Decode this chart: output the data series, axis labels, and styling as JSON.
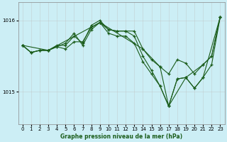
{
  "title": "Graphe pression niveau de la mer (hPa)",
  "xlim": [
    -0.5,
    23.5
  ],
  "ylim": [
    1014.55,
    1016.25
  ],
  "yticks": [
    1015,
    1016
  ],
  "xticks": [
    0,
    1,
    2,
    3,
    4,
    5,
    6,
    7,
    8,
    9,
    10,
    11,
    12,
    13,
    14,
    15,
    16,
    17,
    18,
    19,
    20,
    21,
    22,
    23
  ],
  "bg_color": "#cceef5",
  "grid_color": "#bbbbbb",
  "line_color": "#1a5c1a",
  "lines": [
    {
      "x": [
        0,
        1,
        2,
        3,
        4,
        5,
        6,
        7,
        8,
        9,
        10,
        11,
        12,
        13,
        14,
        15,
        16,
        17,
        18,
        19,
        20,
        21,
        22,
        23
      ],
      "y": [
        1015.65,
        1015.55,
        1015.58,
        1015.58,
        1015.63,
        1015.6,
        1015.7,
        1015.7,
        1015.9,
        1015.97,
        1015.87,
        1015.85,
        1015.85,
        1015.85,
        1015.6,
        1015.45,
        1015.35,
        1015.25,
        1015.45,
        1015.4,
        1015.25,
        1015.38,
        1015.5,
        1016.05
      ]
    },
    {
      "x": [
        0,
        1,
        2,
        3,
        4,
        5,
        6,
        7,
        8,
        9,
        10,
        11,
        12,
        13,
        14,
        15,
        16,
        17,
        18,
        19,
        20,
        21,
        22,
        23
      ],
      "y": [
        1015.65,
        1015.55,
        1015.58,
        1015.58,
        1015.65,
        1015.65,
        1015.78,
        1015.68,
        1015.93,
        1016.0,
        1015.87,
        1015.85,
        1015.85,
        1015.78,
        1015.5,
        1015.3,
        1015.08,
        1014.8,
        1015.18,
        1015.2,
        1015.05,
        1015.2,
        1015.38,
        1016.05
      ]
    },
    {
      "x": [
        0,
        1,
        2,
        3,
        4,
        5,
        6,
        7,
        8,
        9,
        10,
        11,
        12,
        13,
        14,
        15,
        16,
        17,
        18,
        19,
        20,
        21,
        23
      ],
      "y": [
        1015.65,
        1015.55,
        1015.58,
        1015.58,
        1015.63,
        1015.68,
        1015.82,
        1015.65,
        1015.87,
        1015.97,
        1015.82,
        1015.78,
        1015.78,
        1015.68,
        1015.42,
        1015.25,
        1015.08,
        1014.8,
        1015.18,
        1015.2,
        1015.05,
        1015.2,
        1016.05
      ]
    },
    {
      "x": [
        0,
        3,
        9,
        14,
        16,
        17,
        19,
        21,
        22,
        23
      ],
      "y": [
        1015.65,
        1015.58,
        1015.97,
        1015.6,
        1015.35,
        1014.8,
        1015.2,
        1015.38,
        1015.5,
        1016.05
      ]
    }
  ]
}
